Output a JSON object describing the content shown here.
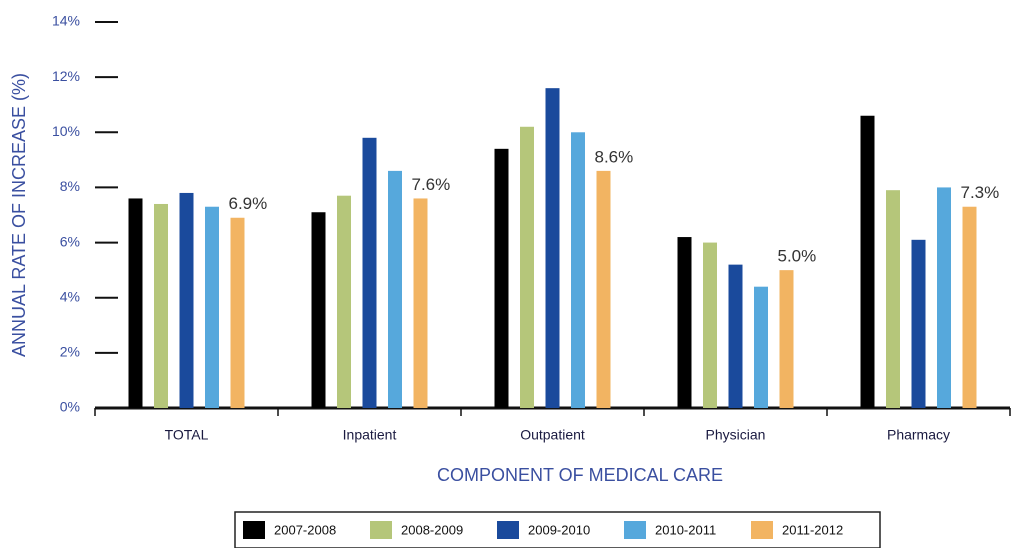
{
  "chart_data": {
    "type": "bar",
    "x_label": "COMPONENT OF MEDICAL CARE",
    "y_label": "ANNUAL RATE OF INCREASE (%)",
    "categories": [
      "TOTAL",
      "Inpatient",
      "Outpatient",
      "Physician",
      "Pharmacy"
    ],
    "series": [
      {
        "name": "2007-2008",
        "color": "#000000",
        "values": [
          7.6,
          7.1,
          9.4,
          6.2,
          10.6
        ]
      },
      {
        "name": "2008-2009",
        "color": "#b5c67a",
        "values": [
          7.4,
          7.7,
          10.2,
          6.0,
          7.9
        ]
      },
      {
        "name": "2009-2010",
        "color": "#1a4a9c",
        "values": [
          7.8,
          9.8,
          11.6,
          5.2,
          6.1
        ]
      },
      {
        "name": "2010-2011",
        "color": "#56a8dc",
        "values": [
          7.3,
          8.6,
          10.0,
          4.4,
          8.0
        ]
      },
      {
        "name": "2011-2012",
        "color": "#f2b462",
        "values": [
          6.9,
          7.6,
          8.6,
          5.0,
          7.3
        ],
        "value_labels": [
          "6.9%",
          "7.6%",
          "8.6%",
          "5.0%",
          "7.3%"
        ]
      }
    ],
    "ylim": [
      0,
      14
    ],
    "yticks": [
      {
        "value": 0,
        "label": "0%"
      },
      {
        "value": 2,
        "label": "2%"
      },
      {
        "value": 4,
        "label": "4%"
      },
      {
        "value": 6,
        "label": "6%"
      },
      {
        "value": 8,
        "label": "8%"
      },
      {
        "value": 10,
        "label": "10%"
      },
      {
        "value": 12,
        "label": "12%"
      },
      {
        "value": 14,
        "label": "14%"
      }
    ],
    "legend": "bottom"
  }
}
